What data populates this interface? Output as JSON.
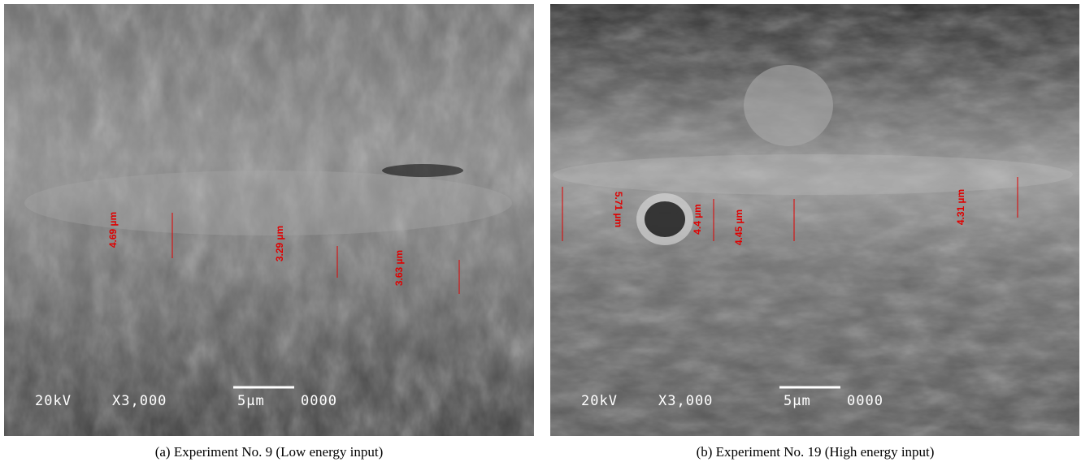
{
  "panels": [
    {
      "caption": "(a) Experiment  No. 9 (Low energy input)",
      "info": {
        "voltage": "20kV",
        "magnification": "X3,000",
        "scale": "5µm",
        "id": "0000"
      },
      "measurements": [
        {
          "label": "4.69 µm"
        },
        {
          "label": "3.29 µm"
        },
        {
          "label": "3.63 µm"
        }
      ]
    },
    {
      "caption": "(b) Experiment  No. 19 (High energy input)",
      "info": {
        "voltage": "20kV",
        "magnification": "X3,000",
        "scale": "5µm",
        "id": "0000"
      },
      "measurements": [
        {
          "label": "5.71 µm"
        },
        {
          "label": "4.4 µm"
        },
        {
          "label": "4.45 µm"
        },
        {
          "label": "4.31 µm"
        }
      ]
    }
  ]
}
